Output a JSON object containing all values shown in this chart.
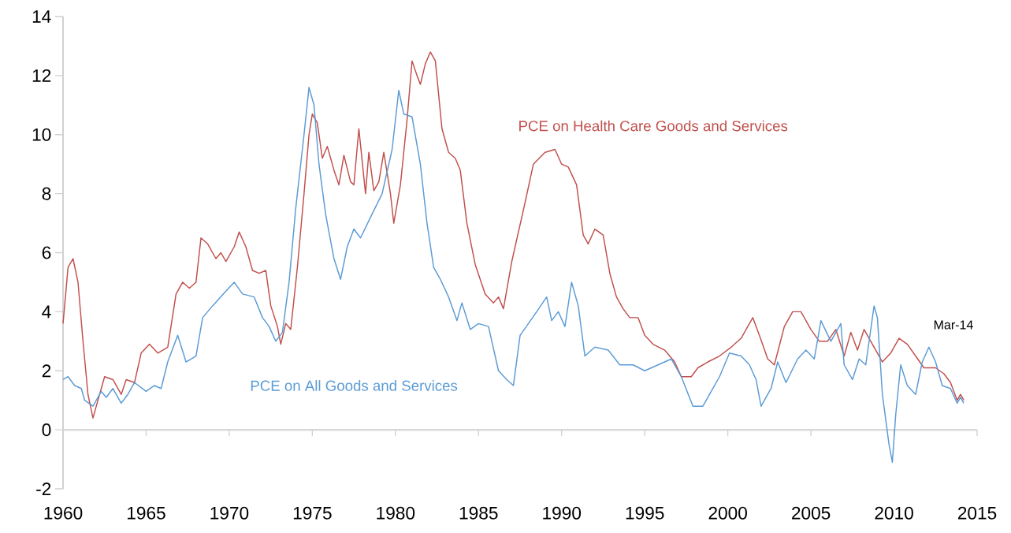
{
  "chart_data": {
    "type": "line",
    "xlim": [
      1960,
      2015
    ],
    "ylim": [
      -2,
      14
    ],
    "xticks": [
      1960,
      1965,
      1970,
      1975,
      1980,
      1985,
      1990,
      1995,
      2000,
      2005,
      2010,
      2015
    ],
    "yticks": [
      -2,
      0,
      2,
      4,
      6,
      8,
      10,
      12,
      14
    ],
    "legend": false,
    "marker": "none",
    "line_style": "solid",
    "annotations": [
      "Mar-14"
    ],
    "series": [
      {
        "name": "PCE on Health Care Goods and Services",
        "color": "#c0504d",
        "x": [
          1960.0,
          1960.3,
          1960.6,
          1960.9,
          1961.2,
          1961.5,
          1961.8,
          1962.2,
          1962.5,
          1963.0,
          1963.5,
          1963.8,
          1964.3,
          1964.7,
          1965.2,
          1965.7,
          1966.3,
          1966.8,
          1967.2,
          1967.6,
          1968.0,
          1968.3,
          1968.7,
          1969.2,
          1969.5,
          1969.8,
          1970.3,
          1970.6,
          1971.0,
          1971.4,
          1971.8,
          1972.2,
          1972.5,
          1972.9,
          1973.1,
          1973.4,
          1973.7,
          1974.1,
          1974.5,
          1974.8,
          1975.0,
          1975.3,
          1975.6,
          1975.9,
          1976.3,
          1976.6,
          1976.9,
          1977.3,
          1977.5,
          1977.8,
          1978.2,
          1978.4,
          1978.7,
          1979.0,
          1979.3,
          1979.7,
          1979.9,
          1980.3,
          1980.7,
          1981.0,
          1981.3,
          1981.5,
          1981.8,
          1982.1,
          1982.4,
          1982.8,
          1983.2,
          1983.6,
          1983.9,
          1984.3,
          1984.8,
          1985.4,
          1985.9,
          1986.2,
          1986.5,
          1987.0,
          1987.8,
          1988.3,
          1989.0,
          1989.6,
          1990.0,
          1990.4,
          1990.9,
          1991.3,
          1991.6,
          1992.0,
          1992.5,
          1992.9,
          1993.3,
          1993.7,
          1994.1,
          1994.6,
          1995.0,
          1995.5,
          1996.2,
          1996.8,
          1997.2,
          1997.8,
          1998.2,
          1998.8,
          1999.5,
          2000.2,
          2000.8,
          2001.5,
          2001.9,
          2002.4,
          2002.8,
          2003.4,
          2003.9,
          2004.4,
          2005.0,
          2005.5,
          2006.0,
          2006.5,
          2007.0,
          2007.4,
          2007.8,
          2008.2,
          2008.7,
          2009.3,
          2009.8,
          2010.3,
          2010.8,
          2011.3,
          2011.8,
          2012.5,
          2013.0,
          2013.4,
          2013.8,
          2014.0,
          2014.2
        ],
        "values": [
          3.6,
          5.5,
          5.8,
          5.0,
          3.0,
          1.2,
          0.4,
          1.2,
          1.8,
          1.7,
          1.2,
          1.7,
          1.6,
          2.6,
          2.9,
          2.6,
          2.8,
          4.6,
          5.0,
          4.8,
          5.0,
          6.5,
          6.3,
          5.8,
          6.0,
          5.7,
          6.2,
          6.7,
          6.2,
          5.4,
          5.3,
          5.4,
          4.2,
          3.5,
          2.9,
          3.6,
          3.4,
          5.5,
          8.0,
          10.0,
          10.7,
          10.4,
          9.2,
          9.6,
          8.8,
          8.3,
          9.3,
          8.4,
          8.3,
          10.2,
          8.0,
          9.4,
          8.1,
          8.4,
          9.4,
          8.0,
          7.0,
          8.3,
          10.5,
          12.5,
          12.0,
          11.7,
          12.4,
          12.8,
          12.5,
          10.2,
          9.4,
          9.2,
          8.8,
          7.0,
          5.6,
          4.6,
          4.3,
          4.5,
          4.1,
          5.7,
          7.7,
          9.0,
          9.4,
          9.5,
          9.0,
          8.9,
          8.3,
          6.6,
          6.3,
          6.8,
          6.6,
          5.3,
          4.5,
          4.1,
          3.8,
          3.8,
          3.2,
          2.9,
          2.7,
          2.3,
          1.8,
          1.8,
          2.1,
          2.3,
          2.5,
          2.8,
          3.1,
          3.8,
          3.2,
          2.4,
          2.2,
          3.5,
          4.0,
          4.0,
          3.4,
          3.0,
          3.0,
          3.4,
          2.5,
          3.3,
          2.7,
          3.4,
          2.9,
          2.3,
          2.6,
          3.1,
          2.9,
          2.5,
          2.1,
          2.1,
          1.9,
          1.6,
          1.0,
          1.2,
          1.0
        ]
      },
      {
        "name": "PCE on All Goods and Services",
        "color": "#5b9bd5",
        "x": [
          1960.0,
          1960.3,
          1960.7,
          1961.1,
          1961.3,
          1961.8,
          1962.3,
          1962.6,
          1963.0,
          1963.5,
          1963.9,
          1964.3,
          1965.0,
          1965.5,
          1965.9,
          1966.3,
          1966.9,
          1967.4,
          1968.0,
          1968.4,
          1969.0,
          1969.8,
          1970.3,
          1970.8,
          1971.5,
          1972.0,
          1972.4,
          1972.8,
          1973.2,
          1973.6,
          1974.0,
          1974.5,
          1974.8,
          1975.1,
          1975.4,
          1975.8,
          1976.3,
          1976.7,
          1977.1,
          1977.5,
          1977.9,
          1978.5,
          1979.2,
          1979.8,
          1980.2,
          1980.5,
          1981.0,
          1981.5,
          1981.9,
          1982.3,
          1982.7,
          1983.2,
          1983.7,
          1984.0,
          1984.5,
          1985.0,
          1985.6,
          1986.2,
          1986.7,
          1987.1,
          1987.5,
          1988.0,
          1988.5,
          1989.1,
          1989.4,
          1989.8,
          1990.2,
          1990.6,
          1991.0,
          1991.4,
          1992.0,
          1992.8,
          1993.5,
          1994.3,
          1995.0,
          1995.8,
          1996.6,
          1997.2,
          1997.9,
          1998.5,
          1999.0,
          1999.5,
          2000.1,
          2000.8,
          2001.3,
          2001.7,
          2002.0,
          2002.6,
          2003.0,
          2003.5,
          2004.2,
          2004.7,
          2005.2,
          2005.6,
          2006.2,
          2006.8,
          2007.0,
          2007.5,
          2007.9,
          2008.3,
          2008.8,
          2009.0,
          2009.3,
          2009.7,
          2009.9,
          2010.1,
          2010.4,
          2010.8,
          2011.3,
          2011.7,
          2012.1,
          2012.5,
          2012.9,
          2013.4,
          2013.8,
          2014.0,
          2014.2
        ],
        "values": [
          1.7,
          1.8,
          1.5,
          1.4,
          1.0,
          0.8,
          1.3,
          1.1,
          1.4,
          0.9,
          1.2,
          1.6,
          1.3,
          1.5,
          1.4,
          2.3,
          3.2,
          2.3,
          2.5,
          3.8,
          4.2,
          4.7,
          5.0,
          4.6,
          4.5,
          3.8,
          3.5,
          3.0,
          3.3,
          5.0,
          7.5,
          10.0,
          11.6,
          11.0,
          9.0,
          7.3,
          5.8,
          5.1,
          6.2,
          6.8,
          6.5,
          7.2,
          8.0,
          9.5,
          11.5,
          10.7,
          10.6,
          9.0,
          7.0,
          5.5,
          5.1,
          4.5,
          3.7,
          4.3,
          3.4,
          3.6,
          3.5,
          2.0,
          1.7,
          1.5,
          3.2,
          3.6,
          4.0,
          4.5,
          3.7,
          4.0,
          3.5,
          5.0,
          4.2,
          2.5,
          2.8,
          2.7,
          2.2,
          2.2,
          2.0,
          2.2,
          2.4,
          1.8,
          0.8,
          0.8,
          1.3,
          1.8,
          2.6,
          2.5,
          2.2,
          1.7,
          0.8,
          1.4,
          2.3,
          1.6,
          2.4,
          2.7,
          2.4,
          3.7,
          3.0,
          3.6,
          2.2,
          1.7,
          2.4,
          2.2,
          4.2,
          3.8,
          1.2,
          -0.5,
          -1.1,
          0.5,
          2.2,
          1.5,
          1.2,
          2.3,
          2.8,
          2.3,
          1.5,
          1.4,
          0.9,
          1.1,
          0.9
        ]
      }
    ]
  }
}
